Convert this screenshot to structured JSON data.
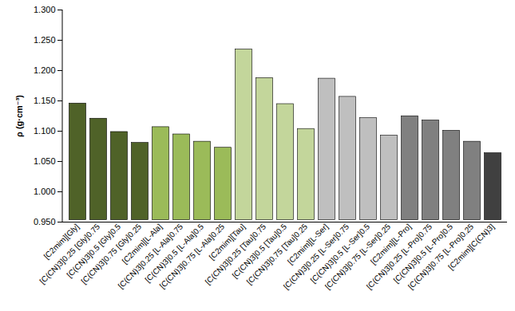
{
  "chart_data": {
    "type": "bar",
    "y_label": "ρ (g·cm⁻³)",
    "categories": [
      "[C2mim][Gly]",
      "[C(CN)3]0.25 [Gly]0.75",
      "[C(CN)3]0.5 [Gly]0.5",
      "[C(CN)3]0.75 [Gly]0.25",
      "[C2mim][L-Ala]",
      "[C(CN)3]0.25 [L-Ala]0.75",
      "[C(CN)3]0.5 [L-Ala]0.5",
      "[C(CN)3]0.75 [L-Ala]0.25",
      "[C2mim][Tau]",
      "[C(CN)3]0.25 [Tau]0.75",
      "[C(CN)3]0.5 [Tau]0.5",
      "[C(CN)3]0.75 [Tau]0.25",
      "[C2mim][L-Ser]",
      "[C(CN)3]0.25 [L-Ser]0.75",
      "[C(CN)3]0.5 [L-Ser]0.5",
      "[C(CN)3]0.75 [L-Ser]0.25",
      "[C2mim][L-Pro]",
      "[C(CN)3]0.25 [L-Pro]0.75",
      "[C(CN)3]0.5 [L-Pro]0.5",
      "[C(CN)3]0.75 [L-Pro]0.25",
      "[C2mim][C(CN)3]"
    ],
    "values": [
      1.149,
      1.124,
      1.102,
      1.084,
      1.11,
      1.098,
      1.086,
      1.076,
      1.238,
      1.191,
      1.148,
      1.107,
      1.19,
      1.16,
      1.125,
      1.096,
      1.128,
      1.121,
      1.104,
      1.086,
      1.067
    ],
    "colors": [
      "#4f6228",
      "#4f6228",
      "#4f6228",
      "#4f6228",
      "#9bbb59",
      "#9bbb59",
      "#9bbb59",
      "#9bbb59",
      "#c3d69b",
      "#c3d69b",
      "#c3d69b",
      "#c3d69b",
      "#bfbfbf",
      "#bfbfbf",
      "#bfbfbf",
      "#bfbfbf",
      "#808080",
      "#808080",
      "#808080",
      "#808080",
      "#404040"
    ],
    "ylim": [
      0.95,
      1.3
    ],
    "yticks": [
      {
        "value": 0.95,
        "label": "0.950"
      },
      {
        "value": 1.0,
        "label": "1.000"
      },
      {
        "value": 1.05,
        "label": "1.050"
      },
      {
        "value": 1.1,
        "label": "1.100"
      },
      {
        "value": 1.15,
        "label": "1.150"
      },
      {
        "value": 1.2,
        "label": "1.200"
      },
      {
        "value": 1.25,
        "label": "1.250"
      },
      {
        "value": 1.3,
        "label": "1.300"
      }
    ],
    "grid": false
  }
}
